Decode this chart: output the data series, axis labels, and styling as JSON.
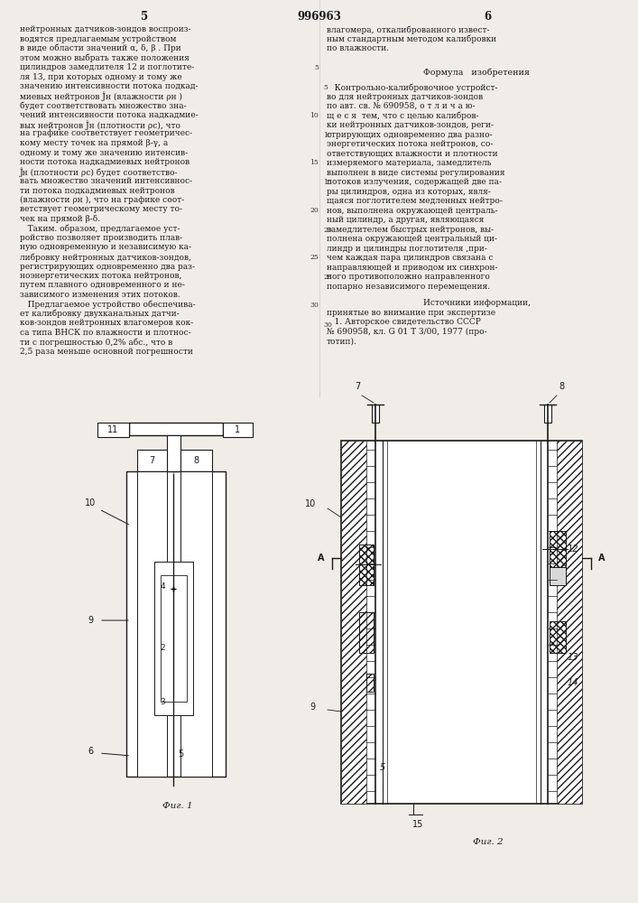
{
  "page_color": "#f0ede8",
  "text_color": "#1a1a1a",
  "title_center": "996963",
  "col_left_num": "5",
  "col_right_num": "6",
  "left_col_lines": [
    "нейтронных датчиков-зондов воспроиз-",
    "водятся предлагаемым устройством",
    "в виде области значений α, δ, β . При",
    "этом можно выбрать также положения",
    "цилиндров замедлителя 12 и поглотите-",
    "ля 13, при которых одному и тому же",
    "значению интенсивности потока подкад-",
    "миевых нейтронов Ĵн (влажности ρн )",
    "будет соответствовать множество зна-",
    "чений интенсивности потока надкадмие-",
    "вых нейтронов Ĵн (плотности ρс), что",
    "на графике соответствует геометричес-",
    "кому месту точек на прямой β-γ, а",
    "одному и тому же значению интенсив-",
    "ности потока надкадмиевых нейтронов",
    "Ĵн (плотности ρс) будет соответство-",
    "вать множество значений интенсивнос-",
    "ти потока подкадмиевых нейтронов",
    "(влажности ρн ), что на графике соот-",
    "ветствует геометрическому месту то-",
    "чек на прямой β-δ.",
    "   Таким. образом, предлагаемое уст-",
    "ройство позволяет производить плав-",
    "ную одновременную и независимую ка-",
    "либровку нейтронных датчиков-зондов,",
    "регистрирующих одновременно два раз-",
    "ноэнергетических потока нейтронов,",
    "путем плавного одновременного и не-",
    "зависимого изменения этих потоков.",
    "   Предлагаемое устройство обеспечива-",
    "ет калибровку двухканальных датчи-",
    "ков-зондов нейтронных влагомеров кок-",
    "са типа ВНСК по влажности и плотнос-",
    "ти с погрешностью 0,2% абс., что в",
    "2,5 раза меньше основной погрешности"
  ],
  "right_col_lines_top": [
    "влагомера, откалиброванного извест-",
    "ным стандартным методом калибровки",
    "по влажности."
  ],
  "formula_title": "Формула   изобретения",
  "right_col_formula": [
    "   Контрольно-калибровочное устройст-",
    "во для нейтронных датчиков-зондов",
    "по авт. св. № 690958, о т л и ч а ю-",
    "щ е с я  тем, что с целью калибров-",
    "ки нейтронных датчиков-зондов, реги-",
    "стрирующих одновременно два разно-",
    "энергетических потока нейтронов, со-",
    "ответствующих влажности и плотности",
    "измеряемого материала, замедлитель",
    "выполнен в виде системы регулирования",
    "потоков излучения, содержащей две па-",
    "ры цилиндров, одна из которых, явля-",
    "щаяся поглотителем медленных нейтро-",
    "нов, выполнена окружающей централь-",
    "ный цилиндр, а другая, являющаяся",
    "замедлителем быстрых нейтронов, вы-",
    "полнена окружающей центральный ци-",
    "линдр и цилиндры поглотителя ,при-",
    "чем каждая пара цилиндров связана с",
    "направляющей и приводом их синхрон-",
    "ного противоположно направленного",
    "попарно независимого перемещения."
  ],
  "sources_title": "Источники информации,",
  "sources_text": [
    "принятые во внимание при экспертизе",
    "   1. Авторское свидетельство СССР",
    "№ 690958, кл. G 01 T 3/00, 1977 (про-",
    "тотип)."
  ],
  "fig1_label": "Фиг. 1",
  "fig2_label": "Фиг. 2"
}
